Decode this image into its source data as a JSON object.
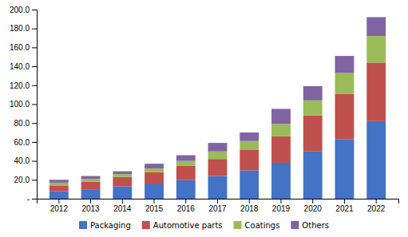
{
  "chart_data": {
    "type": "bar",
    "stacked": true,
    "legend": "bottom",
    "grid": false,
    "categories": [
      "2012",
      "2013",
      "2014",
      "2015",
      "2016",
      "2017",
      "2018",
      "2019",
      "2020",
      "2021",
      "2022"
    ],
    "series": [
      {
        "name": "Packaging",
        "color": "#4472c4",
        "values": [
          8,
          10,
          13,
          16,
          20,
          24,
          30,
          38,
          50,
          63,
          82
        ]
      },
      {
        "name": "Automotive parts",
        "color": "#c0504d",
        "values": [
          6,
          8,
          10,
          12,
          15,
          18,
          22,
          28,
          38,
          48,
          62
        ]
      },
      {
        "name": "Coatings",
        "color": "#9bbb59",
        "values": [
          3,
          3,
          3,
          4,
          5,
          8,
          9,
          13,
          16,
          22,
          28
        ]
      },
      {
        "name": "Others",
        "color": "#8064a2",
        "values": [
          3,
          3,
          3,
          5,
          6,
          9,
          9,
          16,
          15,
          18,
          20
        ]
      }
    ],
    "ylim": [
      0,
      200
    ],
    "yticks": [
      {
        "value": 0,
        "label": "-"
      },
      {
        "value": 20,
        "label": "20.0"
      },
      {
        "value": 40,
        "label": "40.0"
      },
      {
        "value": 60,
        "label": "60.0"
      },
      {
        "value": 80,
        "label": "80.0"
      },
      {
        "value": 100,
        "label": "100.0"
      },
      {
        "value": 120,
        "label": "120.0"
      },
      {
        "value": 140,
        "label": "140.0"
      },
      {
        "value": 160,
        "label": "160.0"
      },
      {
        "value": 180,
        "label": "180.0"
      },
      {
        "value": 200,
        "label": "200.0"
      }
    ]
  }
}
